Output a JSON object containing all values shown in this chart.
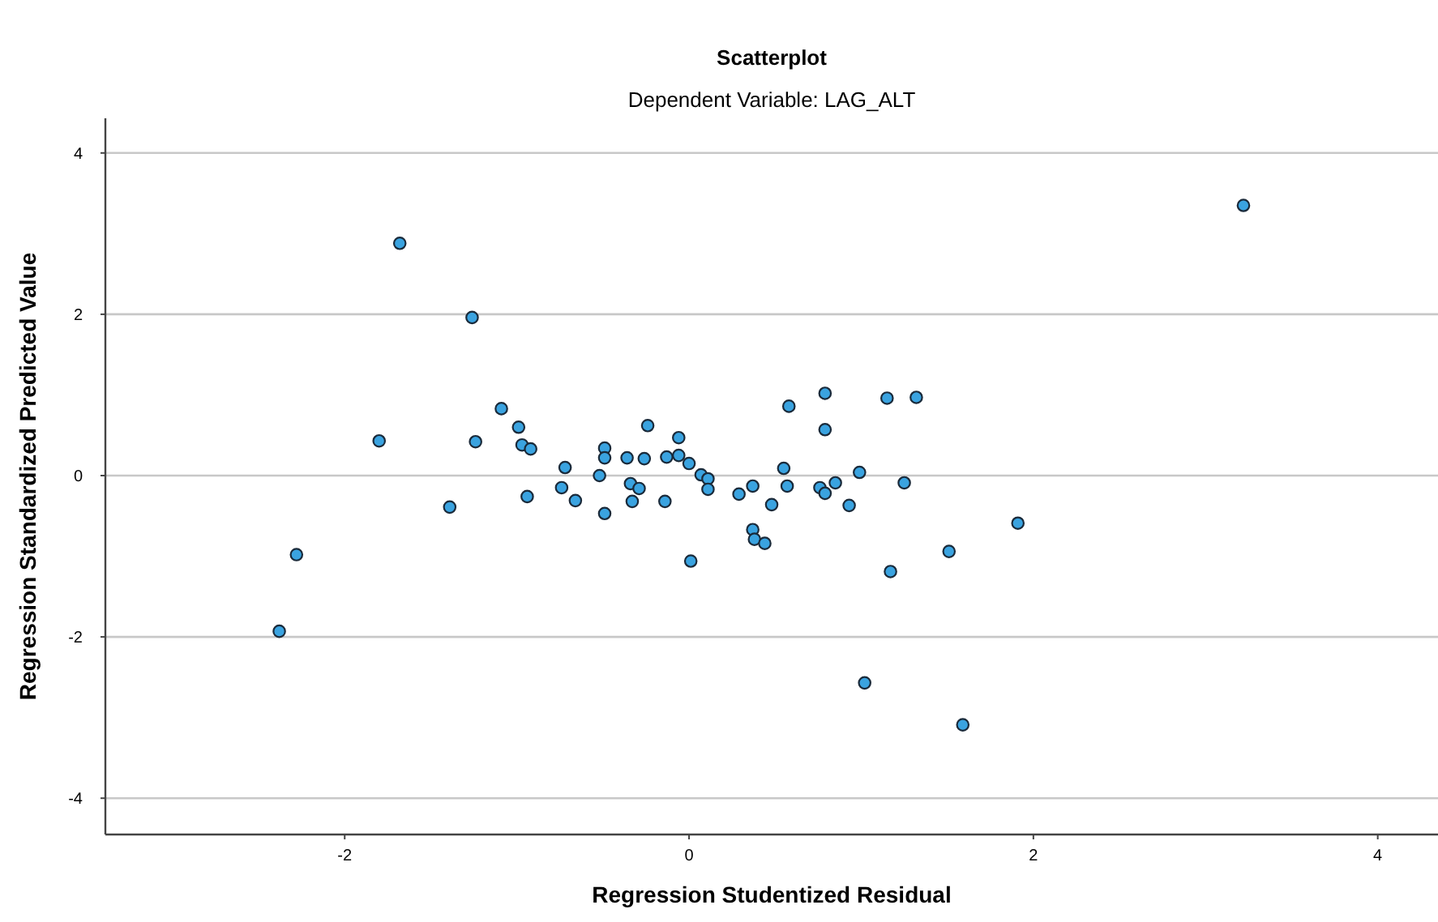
{
  "chart_data": {
    "type": "scatter",
    "title": "Scatterplot",
    "subtitle": "Dependent Variable: LAG_ALT",
    "xlabel": "Regression Studentized Residual",
    "ylabel": "Regression Standardized Predicted Value",
    "xlim": [
      -3.39,
      4.35
    ],
    "ylim": [
      -4.45,
      4.43
    ],
    "xticks": [
      -2,
      0,
      2,
      4
    ],
    "yticks": [
      -4,
      -2,
      0,
      2,
      4
    ],
    "grid": "y",
    "marker": "circle",
    "series": [
      {
        "color": "#3aa3e0",
        "x": [
          3.22,
          -1.68,
          -1.26,
          -1.09,
          -0.99,
          -0.97,
          -0.92,
          -1.8,
          -1.24,
          -1.39,
          -2.28,
          -2.38,
          -0.94,
          -0.72,
          -0.74,
          -0.66,
          -0.52,
          -0.49,
          -0.49,
          -0.49,
          -0.36,
          -0.34,
          -0.29,
          -0.33,
          -0.26,
          -0.24,
          -0.14,
          -0.13,
          -0.06,
          -0.06,
          0.0,
          0.01,
          0.07,
          0.11,
          0.11,
          0.29,
          0.37,
          0.37,
          0.38,
          0.44,
          0.48,
          0.55,
          0.57,
          0.58,
          0.76,
          0.79,
          0.79,
          0.79,
          0.85,
          0.93,
          0.99,
          1.02,
          1.15,
          1.17,
          1.25,
          1.32,
          1.51,
          1.59,
          1.91
        ],
        "values": [
          3.35,
          2.88,
          1.96,
          0.83,
          0.6,
          0.38,
          0.33,
          0.43,
          0.42,
          -0.39,
          -0.98,
          -1.93,
          -0.26,
          0.1,
          -0.15,
          -0.31,
          0.0,
          0.34,
          0.22,
          -0.47,
          0.22,
          -0.1,
          -0.16,
          -0.32,
          0.21,
          0.62,
          -0.32,
          0.23,
          0.25,
          0.47,
          0.15,
          -1.06,
          0.01,
          -0.04,
          -0.17,
          -0.23,
          -0.13,
          -0.67,
          -0.79,
          -0.84,
          -0.36,
          0.09,
          -0.13,
          0.86,
          -0.15,
          -0.22,
          1.02,
          0.57,
          -0.09,
          -0.37,
          0.04,
          -2.57,
          0.96,
          -1.19,
          -0.09,
          0.97,
          -0.94,
          -3.09,
          -0.59
        ]
      }
    ]
  }
}
